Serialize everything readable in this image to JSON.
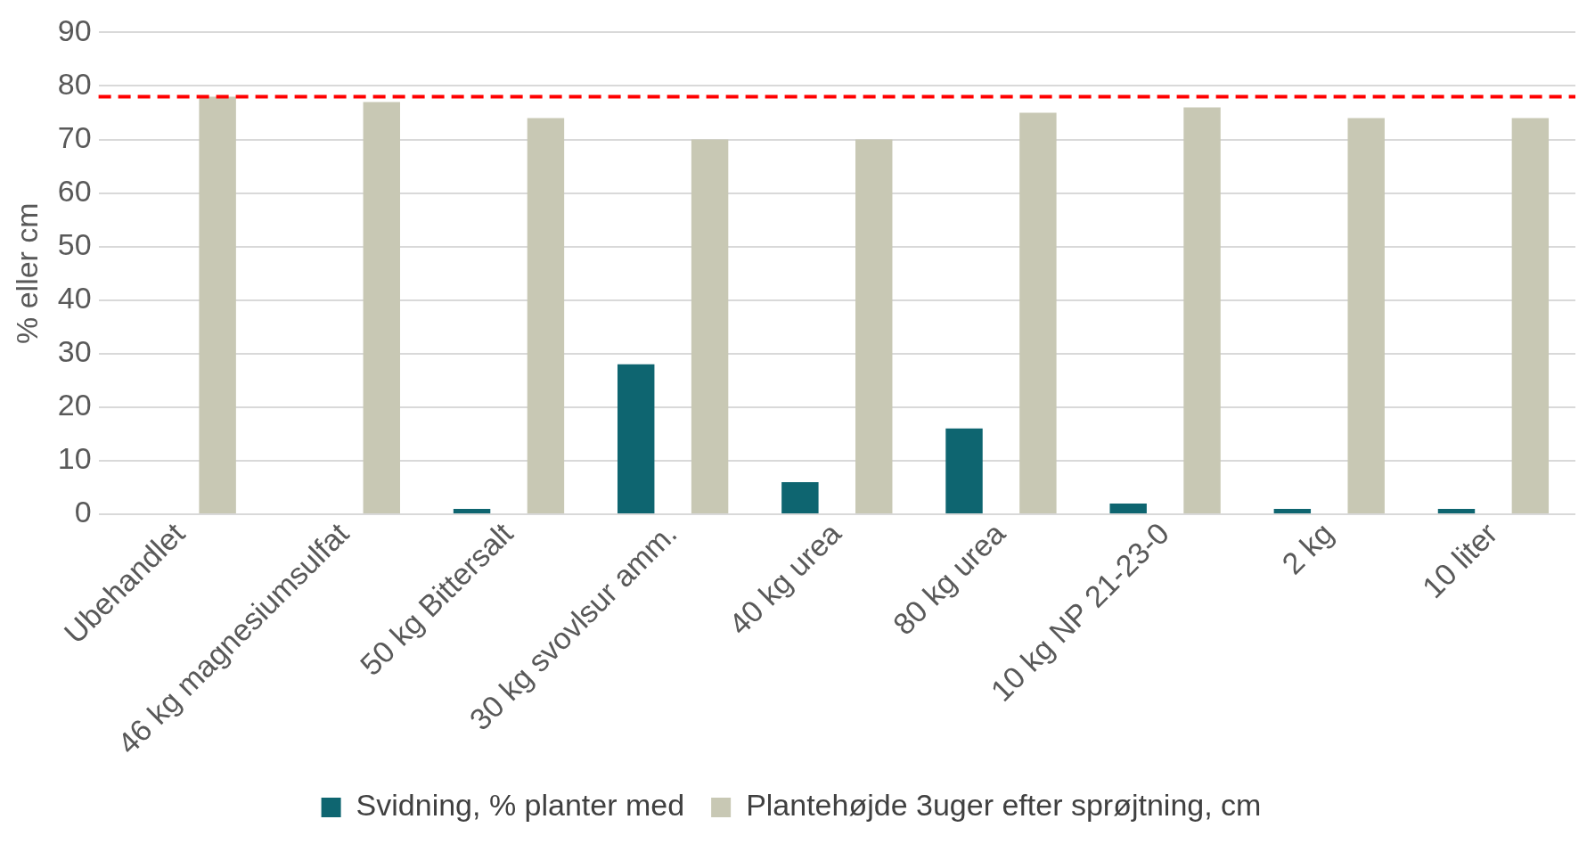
{
  "chart_data": {
    "type": "bar",
    "ylabel": "% eller cm",
    "categories": [
      "Ubehandlet",
      "46 kg magnesiumsulfat",
      "50 kg Bittersalt",
      "30 kg svovlsur amm.",
      "40 kg urea",
      "80 kg urea",
      "10 kg NP 21-23-0",
      "2 kg",
      "10 liter"
    ],
    "series": [
      {
        "name": "Svidning, % planter med",
        "color": "#0e6570",
        "values": [
          0,
          0,
          1,
          28,
          6,
          16,
          2,
          1,
          1
        ]
      },
      {
        "name": "Plantehøjde 3uger efter sprøjtning, cm",
        "color": "#c8c8b4",
        "values": [
          78,
          77,
          74,
          70,
          70,
          75,
          76,
          74,
          74
        ]
      }
    ],
    "ylim": [
      0,
      90
    ],
    "yticks": [
      0,
      10,
      20,
      30,
      40,
      50,
      60,
      70,
      80,
      90
    ],
    "grid": "y",
    "legend": "bottom",
    "ref_lines": [
      {
        "axis": "y",
        "value": 78,
        "color": "#ff0000",
        "line_style": "dashed"
      }
    ]
  }
}
